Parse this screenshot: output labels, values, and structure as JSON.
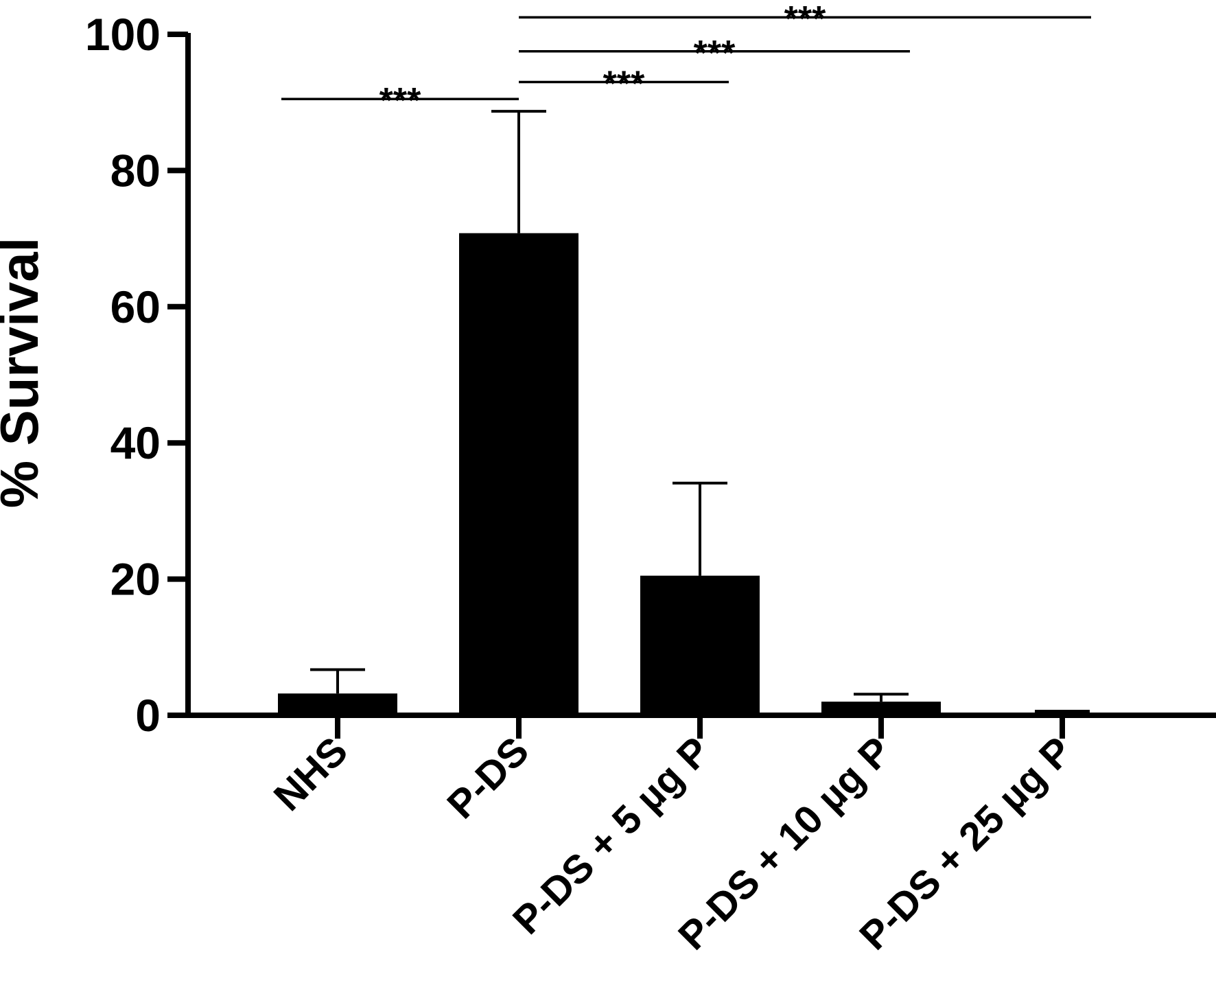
{
  "chart_data": {
    "type": "bar",
    "categories": [
      "NHS",
      "P-DS",
      "P-DS + 5 µg P",
      "P-DS + 10 µg P",
      "P-DS + 25 µg P"
    ],
    "series": [
      {
        "values": [
          3.2,
          70.8,
          20.5,
          2.0,
          0.4
        ],
        "error": [
          3.5,
          17.9,
          13.6,
          1.1,
          0.2
        ]
      }
    ],
    "ylabel": "% Survival",
    "xlabel": "",
    "ylim": [
      0,
      100
    ],
    "yticks": [
      0,
      20,
      40,
      60,
      80,
      100
    ],
    "grid": false,
    "bar_color": "#000000",
    "significance": [
      {
        "from": 0,
        "to": 1,
        "label": "***",
        "level": 90.5
      },
      {
        "from": 1,
        "to": 2,
        "label": "***",
        "level": 93.0
      },
      {
        "from": 1,
        "to": 3,
        "label": "***",
        "level": 97.5
      },
      {
        "from": 1,
        "to": 4,
        "label": "***",
        "level": 102.5
      }
    ]
  }
}
